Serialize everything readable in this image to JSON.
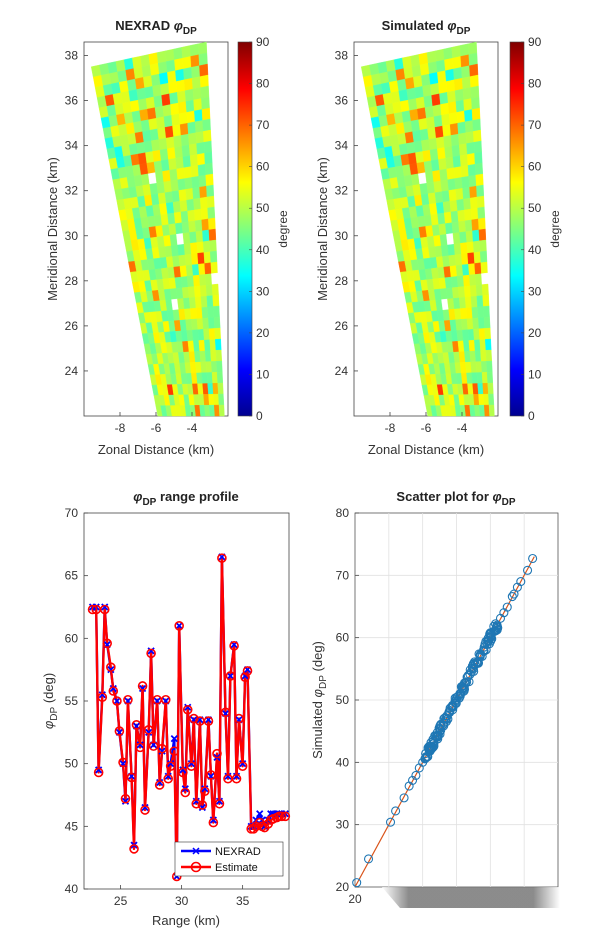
{
  "chart_data": [
    {
      "type": "heatmap",
      "title": "NEXRAD φDP",
      "title_main": "NEXRAD ",
      "title_symbol": "φ",
      "title_sub": "DP",
      "xlabel": "Zonal Distance (km)",
      "ylabel": "Meridional Distance (km)",
      "xlim": [
        -10,
        -2
      ],
      "ylim": [
        22,
        38.6
      ],
      "xticks": [
        -8,
        -6,
        -4
      ],
      "yticks": [
        24,
        26,
        28,
        30,
        32,
        34,
        36,
        38
      ],
      "xtick_labels": [
        "-8",
        "-6",
        "-4"
      ],
      "ytick_labels": [
        "24",
        "26",
        "28",
        "30",
        "32",
        "34",
        "36",
        "38"
      ],
      "colorbar": {
        "label": "degree",
        "range": [
          0,
          90
        ],
        "ticks": [
          0,
          10,
          20,
          30,
          40,
          50,
          60,
          70,
          80,
          90
        ],
        "tick_labels": [
          "0",
          "10",
          "20",
          "30",
          "40",
          "50",
          "60",
          "70",
          "80",
          "90"
        ]
      },
      "sector_corners_km": [
        [
          -9.6,
          37.5
        ],
        [
          -3.2,
          38.6
        ],
        [
          -2.2,
          22.0
        ],
        [
          -5.9,
          22.0
        ]
      ],
      "typical_value_deg": 50
    },
    {
      "type": "heatmap",
      "title": "Simulated φDP",
      "title_main": "Simulated ",
      "title_symbol": "φ",
      "title_sub": "DP",
      "xlabel": "Zonal Distance (km)",
      "ylabel": "Meridional Distance (km)",
      "xlim": [
        -10,
        -2
      ],
      "ylim": [
        22,
        38.6
      ],
      "xticks": [
        -8,
        -6,
        -4
      ],
      "yticks": [
        24,
        26,
        28,
        30,
        32,
        34,
        36,
        38
      ],
      "xtick_labels": [
        "-8",
        "-6",
        "-4"
      ],
      "ytick_labels": [
        "24",
        "26",
        "28",
        "30",
        "32",
        "34",
        "36",
        "38"
      ],
      "colorbar": {
        "label": "degree",
        "range": [
          0,
          90
        ],
        "ticks": [
          0,
          10,
          20,
          30,
          40,
          50,
          60,
          70,
          80,
          90
        ],
        "tick_labels": [
          "0",
          "10",
          "20",
          "30",
          "40",
          "50",
          "60",
          "70",
          "80",
          "90"
        ]
      },
      "sector_corners_km": [
        [
          -9.6,
          37.5
        ],
        [
          -3.2,
          38.6
        ],
        [
          -2.2,
          22.0
        ],
        [
          -5.9,
          22.0
        ]
      ],
      "typical_value_deg": 50
    },
    {
      "type": "line",
      "title": "φDP range profile",
      "title_symbol": "φ",
      "title_sub": "DP",
      "title_main": " range profile",
      "xlabel": "Range (km)",
      "ylabel": "φDP (deg)",
      "ylabel_symbol": "φ",
      "ylabel_sub": "DP",
      "ylabel_main": " (deg)",
      "xlim": [
        22,
        38.8
      ],
      "ylim": [
        40,
        70
      ],
      "xticks": [
        25,
        30,
        35
      ],
      "yticks": [
        40,
        45,
        50,
        55,
        60,
        65,
        70
      ],
      "xtick_labels": [
        "25",
        "30",
        "35"
      ],
      "ytick_labels": [
        "40",
        "45",
        "50",
        "55",
        "60",
        "65",
        "70"
      ],
      "legend": [
        "NEXRAD",
        "Estimate"
      ],
      "legend_position": "bottom-right",
      "series": [
        {
          "name": "NEXRAD",
          "color": "#0000ff",
          "marker": "x",
          "x": [
            22.7,
            23.0,
            23.2,
            23.5,
            23.7,
            23.9,
            24.2,
            24.4,
            24.7,
            24.9,
            25.2,
            25.4,
            25.6,
            25.9,
            26.1,
            26.3,
            26.6,
            26.8,
            27.0,
            27.3,
            27.5,
            27.7,
            28.0,
            28.2,
            28.4,
            28.7,
            28.9,
            29.1,
            29.4,
            29.6,
            29.8,
            30.1,
            30.3,
            30.5,
            30.8,
            31.0,
            31.2,
            31.5,
            31.7,
            31.9,
            32.2,
            32.4,
            32.6,
            32.9,
            33.1,
            33.3,
            33.6,
            33.8,
            34.0,
            34.3,
            34.5,
            34.7,
            35.0,
            35.2,
            35.4,
            35.7,
            35.9,
            36.1,
            36.4,
            36.6,
            36.8,
            37.1,
            37.3,
            37.5,
            37.8,
            38.0,
            38.2,
            38.5
          ],
          "y": [
            62.5,
            62.5,
            49.5,
            55.5,
            62.5,
            59.5,
            57.5,
            56.0,
            55.0,
            52.5,
            50.0,
            47.0,
            55.0,
            49.0,
            43.5,
            53.0,
            51.5,
            56.0,
            46.5,
            52.5,
            59.0,
            51.5,
            55.0,
            48.5,
            51.0,
            55.0,
            49.0,
            50.0,
            52.0,
            41.0,
            61.0,
            49.5,
            48.0,
            54.5,
            50.0,
            53.5,
            47.0,
            53.5,
            46.5,
            48.0,
            53.5,
            49.0,
            45.5,
            50.5,
            47.0,
            66.5,
            54.0,
            49.0,
            57.0,
            59.5,
            49.0,
            53.5,
            50.0,
            57.0,
            57.5,
            45.0,
            45.0,
            45.5,
            46.0,
            45.5,
            45.0,
            45.5,
            46.0,
            46.0,
            46.0,
            46.0,
            46.0,
            46.0
          ]
        },
        {
          "name": "Estimate",
          "color": "#ff0000",
          "marker": "o",
          "x": [
            22.7,
            23.0,
            23.2,
            23.5,
            23.7,
            23.9,
            24.2,
            24.4,
            24.7,
            24.9,
            25.2,
            25.4,
            25.6,
            25.9,
            26.1,
            26.3,
            26.6,
            26.8,
            27.0,
            27.3,
            27.5,
            27.7,
            28.0,
            28.2,
            28.4,
            28.7,
            28.9,
            29.1,
            29.4,
            29.6,
            29.8,
            30.1,
            30.3,
            30.5,
            30.8,
            31.0,
            31.2,
            31.5,
            31.7,
            31.9,
            32.2,
            32.4,
            32.6,
            32.9,
            33.1,
            33.3,
            33.6,
            33.8,
            34.0,
            34.3,
            34.5,
            34.7,
            35.0,
            35.2,
            35.4,
            35.7,
            35.9,
            36.1,
            36.4,
            36.6,
            36.8,
            37.1,
            37.3,
            37.5,
            37.8,
            38.0,
            38.2,
            38.5
          ],
          "y": [
            62.3,
            62.3,
            49.3,
            55.3,
            62.3,
            59.6,
            57.7,
            55.8,
            55.0,
            52.6,
            50.1,
            47.2,
            55.1,
            48.9,
            43.2,
            53.1,
            51.3,
            56.2,
            46.3,
            52.7,
            58.8,
            51.4,
            55.1,
            48.3,
            51.2,
            55.1,
            48.8,
            49.8,
            51.0,
            41.0,
            61.0,
            49.3,
            47.7,
            54.3,
            49.8,
            53.6,
            46.8,
            53.4,
            46.7,
            47.8,
            53.4,
            49.1,
            45.3,
            50.8,
            46.8,
            66.4,
            54.1,
            48.8,
            57.0,
            59.4,
            48.8,
            53.6,
            49.8,
            56.9,
            57.4,
            44.8,
            44.8,
            45.0,
            45.3,
            45.0,
            44.9,
            45.2,
            45.5,
            45.6,
            45.7,
            45.8,
            45.8,
            45.8
          ]
        }
      ]
    },
    {
      "type": "scatter",
      "title": "Scatter plot for φDP",
      "title_main": "Scatter plot for ",
      "title_symbol": "φ",
      "title_sub": "DP",
      "xlabel": "",
      "ylabel": "Simulated φDP (deg)",
      "ylabel_main_pre": "Simulated ",
      "ylabel_symbol": "φ",
      "ylabel_sub": "DP",
      "ylabel_main": " (deg)",
      "xlim": [
        20,
        80
      ],
      "ylim": [
        20,
        80
      ],
      "xticks": [
        20
      ],
      "yticks": [
        20,
        30,
        40,
        50,
        60,
        70,
        80
      ],
      "xtick_labels": [
        "20"
      ],
      "ytick_labels": [
        "20",
        "30",
        "40",
        "50",
        "60",
        "70",
        "80"
      ],
      "grid": true,
      "series": [
        {
          "name": "points",
          "color": "#1f77b4",
          "marker": "o",
          "x": [
            20.5,
            24.0,
            30.5,
            32.0,
            34.5,
            36.0,
            37.0,
            38.0,
            39.0,
            40.0,
            41.0,
            42.0,
            43.0,
            44.0,
            45.0,
            46.0,
            47.0,
            48.0,
            49.0,
            50.0,
            51.0,
            52.0,
            53.0,
            54.0,
            55.0,
            56.0,
            57.0,
            58.0,
            59.0,
            60.0,
            61.0,
            62.0,
            63.0,
            64.0,
            65.0,
            66.5,
            67.0,
            68.0,
            69.0,
            71.0,
            72.5
          ],
          "y": [
            20.7,
            24.5,
            30.4,
            32.2,
            34.3,
            36.2,
            37.1,
            37.9,
            39.1,
            40.0,
            40.9,
            42.1,
            43.0,
            44.1,
            44.9,
            46.0,
            47.1,
            48.0,
            48.9,
            50.1,
            51.0,
            52.0,
            52.9,
            54.1,
            55.0,
            56.0,
            57.1,
            58.0,
            58.9,
            60.1,
            61.0,
            62.0,
            63.1,
            64.0,
            64.9,
            66.6,
            67.0,
            68.1,
            69.0,
            70.8,
            72.7
          ]
        },
        {
          "name": "fit",
          "color": "#d95319",
          "x": [
            20,
            73
          ],
          "y": [
            20,
            73
          ]
        }
      ]
    }
  ]
}
